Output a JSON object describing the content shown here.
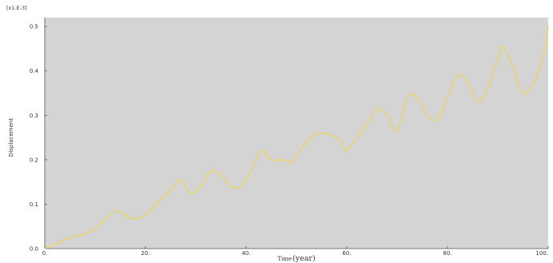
{
  "chart_data": {
    "type": "line",
    "title": "",
    "scale_label": "[x1.E-3]",
    "xlabel": "Time",
    "xunit": "(year)",
    "ylabel": "Displacement",
    "xlim": [
      0,
      100
    ],
    "ylim": [
      0,
      0.52
    ],
    "x_ticks": [
      "0.",
      "20.",
      "40.",
      "60.",
      "80.",
      "100."
    ],
    "y_ticks": [
      "0.0",
      "0.1",
      "0.2",
      "0.3",
      "0.4",
      "0.5"
    ],
    "x_tick_values": [
      0,
      20,
      40,
      60,
      80,
      100
    ],
    "y_tick_values": [
      0,
      0.1,
      0.2,
      0.3,
      0.4,
      0.5
    ],
    "grid": false,
    "background": "#d4d4d4",
    "line_color": "#e8d46a",
    "series": [
      {
        "x": [
          0,
          2,
          4,
          6,
          8,
          10,
          12,
          14,
          15.5,
          17,
          19,
          21,
          23,
          25,
          27,
          29,
          31,
          33,
          35,
          37,
          39,
          41,
          43,
          45,
          47,
          49,
          51,
          53,
          55,
          57,
          59,
          60,
          62,
          64,
          66,
          68,
          70,
          72,
          74,
          76,
          78,
          80,
          82,
          84,
          86,
          88,
          90,
          91,
          93,
          95,
          97,
          99,
          100
        ],
        "y": [
          0,
          0.01,
          0.02,
          0.028,
          0.033,
          0.045,
          0.065,
          0.085,
          0.08,
          0.068,
          0.07,
          0.085,
          0.11,
          0.13,
          0.155,
          0.125,
          0.14,
          0.175,
          0.165,
          0.14,
          0.14,
          0.175,
          0.22,
          0.2,
          0.2,
          0.195,
          0.225,
          0.25,
          0.26,
          0.255,
          0.24,
          0.22,
          0.25,
          0.28,
          0.315,
          0.3,
          0.265,
          0.34,
          0.34,
          0.3,
          0.29,
          0.34,
          0.39,
          0.375,
          0.33,
          0.36,
          0.43,
          0.455,
          0.41,
          0.35,
          0.37,
          0.43,
          0.5
        ]
      }
    ]
  }
}
